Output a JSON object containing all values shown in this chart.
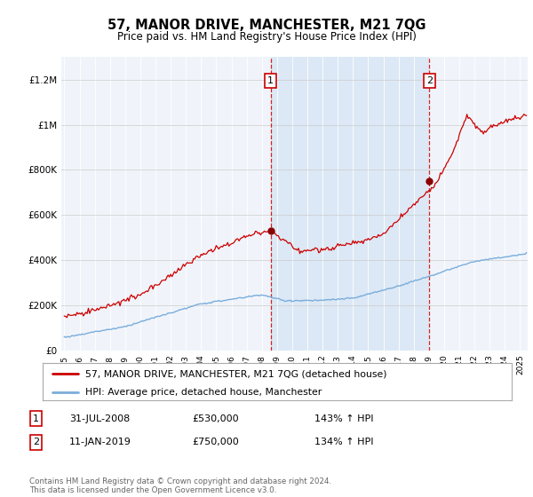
{
  "title": "57, MANOR DRIVE, MANCHESTER, M21 7QG",
  "subtitle": "Price paid vs. HM Land Registry's House Price Index (HPI)",
  "legend_line1": "57, MANOR DRIVE, MANCHESTER, M21 7QG (detached house)",
  "legend_line2": "HPI: Average price, detached house, Manchester",
  "footer": "Contains HM Land Registry data © Crown copyright and database right 2024.\nThis data is licensed under the Open Government Licence v3.0.",
  "annotation1_label": "1",
  "annotation1_date": "31-JUL-2008",
  "annotation1_price": "£530,000",
  "annotation1_hpi": "143% ↑ HPI",
  "annotation2_label": "2",
  "annotation2_date": "11-JAN-2019",
  "annotation2_price": "£750,000",
  "annotation2_hpi": "134% ↑ HPI",
  "vline1_x": 2008.58,
  "vline2_x": 2019.03,
  "dot1_x": 2008.58,
  "dot1_y": 530000,
  "dot2_x": 2019.03,
  "dot2_y": 750000,
  "property_color": "#cc0000",
  "hpi_color": "#7aaddb",
  "shade_color": "#dce8f5",
  "background_color": "#ffffff",
  "plot_bg_color": "#f0f4fa",
  "ylim": [
    0,
    1300000
  ],
  "xlim_start": 1994.8,
  "xlim_end": 2025.5,
  "yticks": [
    0,
    200000,
    400000,
    600000,
    800000,
    1000000,
    1200000
  ],
  "ylabels": [
    "£0",
    "£200K",
    "£400K",
    "£600K",
    "£800K",
    "£1M",
    "£1.2M"
  ]
}
